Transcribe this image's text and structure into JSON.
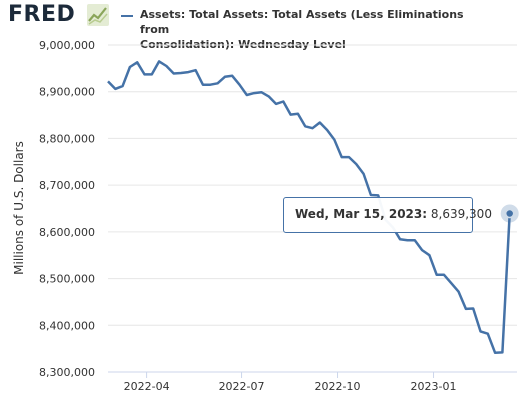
{
  "logo": {
    "text": "FRED",
    "badge_icon": "line-chart-icon"
  },
  "chart_data": {
    "type": "line",
    "title": "",
    "legend": "Assets: Total Assets: Total Assets (Less Eliminations from Consolidation): Wednesday Level",
    "legend_lines": [
      "Assets: Total Assets: Total Assets (Less Eliminations from",
      "Consolidation): Wednesday Level"
    ],
    "ylabel": "Millions of U.S. Dollars",
    "xlabel": "",
    "ylim": [
      8300000,
      9000000
    ],
    "xlim": [
      "2022-02-23",
      "2023-03-22"
    ],
    "yticks": [
      8300000,
      8400000,
      8500000,
      8600000,
      8700000,
      8800000,
      8900000,
      9000000
    ],
    "ytick_labels": [
      "8,300,000",
      "8,400,000",
      "8,500,000",
      "8,600,000",
      "8,700,000",
      "8,800,000",
      "8,900,000",
      "9,000,000"
    ],
    "xticks": [
      "2022-04-01",
      "2022-07-01",
      "2022-10-01",
      "2023-01-01"
    ],
    "xtick_labels": [
      "2022-04",
      "2022-07",
      "2022-10",
      "2023-01"
    ],
    "grid": "horizontal",
    "color": "#4572a7",
    "series": [
      {
        "x": [
          "2022-02-23",
          "2022-03-02",
          "2022-03-09",
          "2022-03-16",
          "2022-03-23",
          "2022-03-30",
          "2022-04-06",
          "2022-04-13",
          "2022-04-20",
          "2022-04-27",
          "2022-05-04",
          "2022-05-11",
          "2022-05-18",
          "2022-05-25",
          "2022-06-01",
          "2022-06-08",
          "2022-06-15",
          "2022-06-22",
          "2022-06-29",
          "2022-07-06",
          "2022-07-13",
          "2022-07-20",
          "2022-07-27",
          "2022-08-03",
          "2022-08-10",
          "2022-08-17",
          "2022-08-24",
          "2022-08-31",
          "2022-09-07",
          "2022-09-14",
          "2022-09-21",
          "2022-09-28",
          "2022-10-05",
          "2022-10-12",
          "2022-10-19",
          "2022-10-26",
          "2022-11-02",
          "2022-11-09",
          "2022-11-16",
          "2022-11-23",
          "2022-11-30",
          "2022-12-07",
          "2022-12-14",
          "2022-12-21",
          "2022-12-28",
          "2023-01-04",
          "2023-01-11",
          "2023-01-18",
          "2023-01-25",
          "2023-02-01",
          "2023-02-08",
          "2023-02-15",
          "2023-02-22",
          "2023-03-01",
          "2023-03-08",
          "2023-03-15"
        ],
        "values": [
          8922000,
          8906000,
          8912000,
          8953000,
          8963000,
          8937000,
          8937000,
          8965000,
          8955000,
          8939000,
          8940000,
          8942000,
          8946000,
          8915000,
          8915000,
          8918000,
          8932000,
          8934000,
          8915000,
          8893000,
          8897000,
          8899000,
          8890000,
          8874000,
          8879000,
          8851000,
          8853000,
          8826000,
          8822000,
          8834000,
          8818000,
          8797000,
          8760000,
          8760000,
          8745000,
          8724000,
          8679000,
          8678000,
          8626000,
          8610000,
          8584000,
          8582000,
          8582000,
          8561000,
          8550000,
          8508000,
          8508000,
          8490000,
          8472000,
          8435000,
          8436000,
          8387000,
          8382000,
          8341000,
          8342000,
          8639300
        ]
      }
    ]
  },
  "tooltip": {
    "date": "Wed, Mar 15, 2023:",
    "value": "8,639,300"
  }
}
